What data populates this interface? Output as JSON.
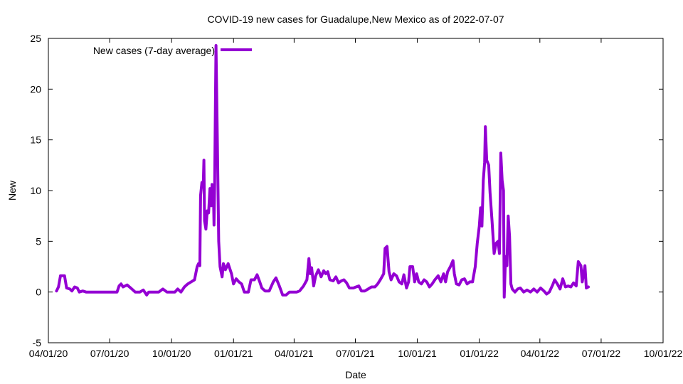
{
  "chart_data": {
    "type": "line",
    "title": "COVID-19 new cases for Guadalupe,New Mexico as of 2022-07-07",
    "xlabel": "Date",
    "ylabel": "New",
    "x_type": "date",
    "xlim": [
      "2020-04-01",
      "2022-10-01"
    ],
    "ylim": [
      -5,
      25
    ],
    "x_ticks": [
      {
        "date": "2020-04-01",
        "label": "04/01/20"
      },
      {
        "date": "2020-07-01",
        "label": "07/01/20"
      },
      {
        "date": "2020-10-01",
        "label": "10/01/20"
      },
      {
        "date": "2021-01-01",
        "label": "01/01/21"
      },
      {
        "date": "2021-04-01",
        "label": "04/01/21"
      },
      {
        "date": "2021-07-01",
        "label": "07/01/21"
      },
      {
        "date": "2021-10-01",
        "label": "10/01/21"
      },
      {
        "date": "2022-01-01",
        "label": "01/01/22"
      },
      {
        "date": "2022-04-01",
        "label": "04/01/22"
      },
      {
        "date": "2022-07-01",
        "label": "07/01/22"
      },
      {
        "date": "2022-10-01",
        "label": "10/01/22"
      }
    ],
    "y_ticks": [
      -5,
      0,
      5,
      10,
      15,
      20,
      25
    ],
    "grid": false,
    "legend_position": "top-left",
    "series": [
      {
        "name": "New cases (7-day average)",
        "color": "#9400d3",
        "points": [
          [
            "2020-04-13",
            0.1
          ],
          [
            "2020-04-16",
            0.5
          ],
          [
            "2020-04-19",
            1.6
          ],
          [
            "2020-04-25",
            1.6
          ],
          [
            "2020-04-28",
            0.4
          ],
          [
            "2020-05-03",
            0.3
          ],
          [
            "2020-05-06",
            0.1
          ],
          [
            "2020-05-10",
            0.5
          ],
          [
            "2020-05-14",
            0.4
          ],
          [
            "2020-05-17",
            0.0
          ],
          [
            "2020-05-22",
            0.1
          ],
          [
            "2020-05-27",
            0.0
          ],
          [
            "2020-06-15",
            0.0
          ],
          [
            "2020-07-01",
            0.0
          ],
          [
            "2020-07-12",
            0.0
          ],
          [
            "2020-07-15",
            0.6
          ],
          [
            "2020-07-18",
            0.8
          ],
          [
            "2020-07-21",
            0.5
          ],
          [
            "2020-07-27",
            0.7
          ],
          [
            "2020-08-03",
            0.3
          ],
          [
            "2020-08-08",
            0.0
          ],
          [
            "2020-08-15",
            0.0
          ],
          [
            "2020-08-20",
            0.2
          ],
          [
            "2020-08-25",
            -0.3
          ],
          [
            "2020-08-28",
            0.0
          ],
          [
            "2020-09-05",
            0.0
          ],
          [
            "2020-09-12",
            0.0
          ],
          [
            "2020-09-18",
            0.3
          ],
          [
            "2020-09-24",
            0.0
          ],
          [
            "2020-10-01",
            0.0
          ],
          [
            "2020-10-06",
            0.0
          ],
          [
            "2020-10-10",
            0.3
          ],
          [
            "2020-10-15",
            0.0
          ],
          [
            "2020-10-20",
            0.5
          ],
          [
            "2020-10-25",
            0.8
          ],
          [
            "2020-10-30",
            1.0
          ],
          [
            "2020-11-04",
            1.2
          ],
          [
            "2020-11-08",
            2.5
          ],
          [
            "2020-11-10",
            2.8
          ],
          [
            "2020-11-12",
            2.6
          ],
          [
            "2020-11-13",
            9.5
          ],
          [
            "2020-11-15",
            10.8
          ],
          [
            "2020-11-17",
            10.5
          ],
          [
            "2020-11-18",
            13.0
          ],
          [
            "2020-11-19",
            7.0
          ],
          [
            "2020-11-21",
            6.2
          ],
          [
            "2020-11-23",
            8.0
          ],
          [
            "2020-11-25",
            7.8
          ],
          [
            "2020-11-27",
            10.2
          ],
          [
            "2020-11-29",
            8.5
          ],
          [
            "2020-11-30",
            10.6
          ],
          [
            "2020-12-02",
            10.2
          ],
          [
            "2020-12-03",
            6.6
          ],
          [
            "2020-12-04",
            10.6
          ],
          [
            "2020-12-06",
            24.3
          ],
          [
            "2020-12-08",
            15.0
          ],
          [
            "2020-12-10",
            5.0
          ],
          [
            "2020-12-12",
            2.5
          ],
          [
            "2020-12-15",
            1.5
          ],
          [
            "2020-12-17",
            2.8
          ],
          [
            "2020-12-20",
            2.2
          ],
          [
            "2020-12-24",
            2.8
          ],
          [
            "2020-12-29",
            1.8
          ],
          [
            "2021-01-01",
            0.8
          ],
          [
            "2021-01-05",
            1.3
          ],
          [
            "2021-01-09",
            1.0
          ],
          [
            "2021-01-13",
            0.8
          ],
          [
            "2021-01-17",
            0.0
          ],
          [
            "2021-01-23",
            0.0
          ],
          [
            "2021-01-27",
            1.2
          ],
          [
            "2021-02-01",
            1.2
          ],
          [
            "2021-02-05",
            1.7
          ],
          [
            "2021-02-09",
            1.0
          ],
          [
            "2021-02-12",
            0.4
          ],
          [
            "2021-02-17",
            0.1
          ],
          [
            "2021-02-23",
            0.1
          ],
          [
            "2021-03-01",
            1.0
          ],
          [
            "2021-03-05",
            1.4
          ],
          [
            "2021-03-10",
            0.6
          ],
          [
            "2021-03-15",
            -0.3
          ],
          [
            "2021-03-20",
            -0.3
          ],
          [
            "2021-03-25",
            0.0
          ],
          [
            "2021-04-01",
            0.0
          ],
          [
            "2021-04-05",
            0.0
          ],
          [
            "2021-04-09",
            0.1
          ],
          [
            "2021-04-15",
            0.6
          ],
          [
            "2021-04-20",
            1.2
          ],
          [
            "2021-04-23",
            3.3
          ],
          [
            "2021-04-25",
            1.8
          ],
          [
            "2021-04-27",
            2.4
          ],
          [
            "2021-04-30",
            0.6
          ],
          [
            "2021-05-03",
            1.6
          ],
          [
            "2021-05-07",
            2.2
          ],
          [
            "2021-05-11",
            1.5
          ],
          [
            "2021-05-15",
            2.1
          ],
          [
            "2021-05-18",
            1.8
          ],
          [
            "2021-05-21",
            2.0
          ],
          [
            "2021-05-24",
            1.2
          ],
          [
            "2021-05-29",
            1.1
          ],
          [
            "2021-06-02",
            1.5
          ],
          [
            "2021-06-06",
            0.9
          ],
          [
            "2021-06-10",
            1.1
          ],
          [
            "2021-06-14",
            1.2
          ],
          [
            "2021-06-18",
            0.9
          ],
          [
            "2021-06-22",
            0.4
          ],
          [
            "2021-06-28",
            0.4
          ],
          [
            "2021-07-02",
            0.5
          ],
          [
            "2021-07-06",
            0.6
          ],
          [
            "2021-07-10",
            0.1
          ],
          [
            "2021-07-15",
            0.1
          ],
          [
            "2021-07-20",
            0.3
          ],
          [
            "2021-07-25",
            0.5
          ],
          [
            "2021-07-30",
            0.5
          ],
          [
            "2021-08-03",
            0.8
          ],
          [
            "2021-08-07",
            1.2
          ],
          [
            "2021-08-12",
            1.8
          ],
          [
            "2021-08-14",
            4.3
          ],
          [
            "2021-08-17",
            4.5
          ],
          [
            "2021-08-20",
            2.0
          ],
          [
            "2021-08-23",
            1.2
          ],
          [
            "2021-08-27",
            1.8
          ],
          [
            "2021-08-31",
            1.6
          ],
          [
            "2021-09-04",
            1.0
          ],
          [
            "2021-09-08",
            0.8
          ],
          [
            "2021-09-11",
            1.7
          ],
          [
            "2021-09-15",
            0.4
          ],
          [
            "2021-09-18",
            1.0
          ],
          [
            "2021-09-20",
            2.5
          ],
          [
            "2021-09-24",
            2.5
          ],
          [
            "2021-09-27",
            1.0
          ],
          [
            "2021-09-30",
            1.8
          ],
          [
            "2021-10-03",
            1.0
          ],
          [
            "2021-10-07",
            0.8
          ],
          [
            "2021-10-11",
            1.2
          ],
          [
            "2021-10-15",
            1.0
          ],
          [
            "2021-10-19",
            0.5
          ],
          [
            "2021-10-23",
            0.8
          ],
          [
            "2021-10-27",
            1.2
          ],
          [
            "2021-11-01",
            1.6
          ],
          [
            "2021-11-05",
            1.0
          ],
          [
            "2021-11-09",
            1.8
          ],
          [
            "2021-11-12",
            1.0
          ],
          [
            "2021-11-15",
            2.0
          ],
          [
            "2021-11-19",
            2.5
          ],
          [
            "2021-11-23",
            3.1
          ],
          [
            "2021-11-25",
            1.8
          ],
          [
            "2021-11-28",
            0.8
          ],
          [
            "2021-12-02",
            0.7
          ],
          [
            "2021-12-06",
            1.2
          ],
          [
            "2021-12-10",
            1.3
          ],
          [
            "2021-12-14",
            0.8
          ],
          [
            "2021-12-18",
            1.0
          ],
          [
            "2021-12-22",
            1.0
          ],
          [
            "2021-12-26",
            2.5
          ],
          [
            "2021-12-29",
            4.8
          ],
          [
            "2022-01-01",
            6.5
          ],
          [
            "2022-01-03",
            8.3
          ],
          [
            "2022-01-05",
            6.5
          ],
          [
            "2022-01-07",
            11.0
          ],
          [
            "2022-01-09",
            12.8
          ],
          [
            "2022-01-10",
            16.3
          ],
          [
            "2022-01-12",
            13.0
          ],
          [
            "2022-01-15",
            12.5
          ],
          [
            "2022-01-17",
            9.8
          ],
          [
            "2022-01-20",
            7.0
          ],
          [
            "2022-01-23",
            3.8
          ],
          [
            "2022-01-26",
            4.8
          ],
          [
            "2022-01-29",
            5.0
          ],
          [
            "2022-01-31",
            3.8
          ],
          [
            "2022-02-02",
            13.7
          ],
          [
            "2022-02-04",
            11.0
          ],
          [
            "2022-02-06",
            10.0
          ],
          [
            "2022-02-07",
            -0.5
          ],
          [
            "2022-02-09",
            3.5
          ],
          [
            "2022-02-11",
            2.6
          ],
          [
            "2022-02-13",
            7.5
          ],
          [
            "2022-02-15",
            5.5
          ],
          [
            "2022-02-17",
            0.8
          ],
          [
            "2022-02-19",
            0.3
          ],
          [
            "2022-02-23",
            0.0
          ],
          [
            "2022-02-27",
            0.3
          ],
          [
            "2022-03-03",
            0.4
          ],
          [
            "2022-03-08",
            0.0
          ],
          [
            "2022-03-13",
            0.2
          ],
          [
            "2022-03-18",
            0.0
          ],
          [
            "2022-03-23",
            0.3
          ],
          [
            "2022-03-28",
            0.0
          ],
          [
            "2022-04-02",
            0.4
          ],
          [
            "2022-04-07",
            0.1
          ],
          [
            "2022-04-11",
            -0.2
          ],
          [
            "2022-04-15",
            0.0
          ],
          [
            "2022-04-20",
            0.7
          ],
          [
            "2022-04-23",
            1.2
          ],
          [
            "2022-04-27",
            0.8
          ],
          [
            "2022-05-01",
            0.3
          ],
          [
            "2022-05-05",
            1.3
          ],
          [
            "2022-05-09",
            0.5
          ],
          [
            "2022-05-13",
            0.6
          ],
          [
            "2022-05-17",
            0.5
          ],
          [
            "2022-05-21",
            0.9
          ],
          [
            "2022-05-25",
            0.6
          ],
          [
            "2022-05-28",
            3.0
          ],
          [
            "2022-06-01",
            2.6
          ],
          [
            "2022-06-03",
            1.0
          ],
          [
            "2022-06-07",
            2.6
          ],
          [
            "2022-06-09",
            0.4
          ],
          [
            "2022-06-12",
            0.5
          ]
        ]
      }
    ]
  }
}
